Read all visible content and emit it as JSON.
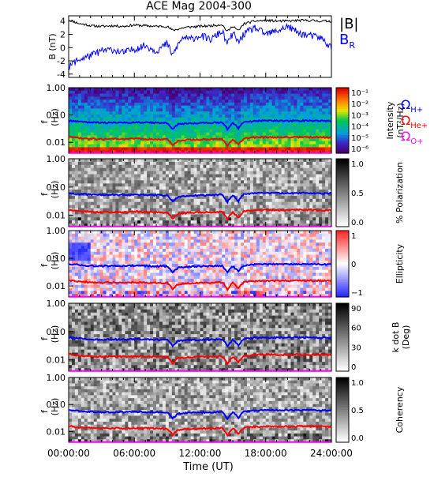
{
  "title": "ACE Mag 2004-300",
  "x_axis": {
    "label": "Time (UT)",
    "ticks": [
      "00:00:00",
      "06:00:00",
      "12:00:00",
      "18:00:00",
      "24:00:00"
    ],
    "range_hours": [
      0,
      24
    ]
  },
  "colors": {
    "B_mag": "#000000",
    "B_R": "#0000ff",
    "proton_gyro": "#0000ff",
    "helium_gyro": "#ff0000",
    "oxygen_gyro": "#ff00ff"
  },
  "chart_data": [
    {
      "type": "line",
      "ylabel": "B (nT)",
      "ylim": [
        -4.5,
        4.8
      ],
      "yticks": [
        "4",
        "2",
        "0",
        "-2",
        "-4"
      ],
      "legend": [
        "|B|",
        "B_R"
      ],
      "legend_placement": "right",
      "series": [
        {
          "name": "|B|",
          "x": [
            0,
            0.5,
            1,
            1.5,
            2,
            3,
            4,
            5,
            6,
            7,
            8,
            9,
            9.5,
            10,
            10.5,
            11,
            12,
            13,
            14,
            14.5,
            15,
            15.5,
            16,
            17,
            18,
            19,
            20,
            21,
            22,
            23,
            24
          ],
          "y": [
            4.2,
            3.9,
            3.6,
            3.5,
            3.3,
            3.2,
            3.3,
            3.2,
            3.4,
            3.3,
            3.2,
            3.2,
            2.6,
            2.8,
            3.0,
            3.1,
            3.2,
            3.3,
            3.5,
            2.4,
            3.3,
            2.5,
            3.6,
            4.0,
            4.1,
            4.0,
            4.0,
            4.1,
            4.1,
            4.0,
            4.0
          ]
        },
        {
          "name": "B_R",
          "x": [
            0,
            0.5,
            1,
            1.5,
            2,
            3,
            4,
            5,
            6,
            7,
            8,
            9,
            9.5,
            10,
            10.5,
            11,
            12,
            13,
            14,
            14.5,
            15,
            15.5,
            16,
            17,
            18,
            19,
            20,
            21,
            22,
            23,
            24
          ],
          "y": [
            -3.0,
            -2.2,
            -1.8,
            -1.5,
            -1.2,
            -0.5,
            -0.3,
            -0.8,
            -0.2,
            0.3,
            -0.5,
            0.6,
            -1.2,
            0.5,
            1.6,
            1.2,
            1.8,
            1.2,
            2.5,
            0.5,
            2.2,
            0.8,
            2.0,
            3.0,
            2.0,
            2.5,
            3.2,
            2.2,
            1.8,
            1.5,
            0.0
          ]
        }
      ]
    },
    {
      "type": "heatmap",
      "ylabel": "f (Hz)",
      "yscale": "log",
      "ylim": [
        0.004,
        1.0
      ],
      "yticks": [
        "1.00",
        "0.10",
        "0.01"
      ],
      "colorbar_label": "Intensity (nT²/Hz)",
      "colorbar_ticks": [
        "10⁻¹",
        "10⁻²",
        "10⁻³",
        "10⁻⁴",
        "10⁻⁵",
        "10⁻⁶"
      ],
      "colorbar_range": [
        1e-06,
        0.1
      ],
      "legend": [
        "Ω_H+",
        "Ω_He+",
        "Ω_O+"
      ]
    },
    {
      "type": "heatmap",
      "ylabel": "f (Hz)",
      "yscale": "log",
      "ylim": [
        0.004,
        1.0
      ],
      "yticks": [
        "1.00",
        "0.10",
        "0.01"
      ],
      "colorbar_label": "% Polarization",
      "colorbar_ticks": [
        "1.0",
        "0.5",
        "0.0"
      ],
      "colorbar_range": [
        0,
        1
      ]
    },
    {
      "type": "heatmap",
      "ylabel": "f (Hz)",
      "yscale": "log",
      "ylim": [
        0.004,
        1.0
      ],
      "yticks": [
        "1.00",
        "0.10",
        "0.01"
      ],
      "colorbar_label": "Ellipticity",
      "colorbar_ticks": [
        "1",
        "0",
        "−1"
      ],
      "colorbar_range": [
        -1,
        1
      ]
    },
    {
      "type": "heatmap",
      "ylabel": "f (Hz)",
      "yscale": "log",
      "ylim": [
        0.004,
        1.0
      ],
      "yticks": [
        "1.00",
        "0.10",
        "0.01"
      ],
      "colorbar_label": "k dot B (Deg)",
      "colorbar_ticks": [
        "90",
        "60",
        "30",
        "0"
      ],
      "colorbar_range": [
        0,
        90
      ]
    },
    {
      "type": "heatmap",
      "ylabel": "f (Hz)",
      "yscale": "log",
      "ylim": [
        0.004,
        1.0
      ],
      "yticks": [
        "1.00",
        "0.10",
        "0.01"
      ],
      "colorbar_label": "Coherency",
      "colorbar_ticks": [
        "1.0",
        "0.5",
        "0.0"
      ],
      "colorbar_range": [
        0,
        1
      ]
    }
  ],
  "gyrofrequencies_hz": {
    "x": [
      0,
      1,
      2,
      3,
      4,
      5,
      6,
      7,
      8,
      9,
      9.5,
      10,
      10.5,
      11,
      12,
      13,
      14,
      14.5,
      15,
      15.5,
      16,
      17,
      18,
      19,
      20,
      21,
      22,
      23,
      24
    ],
    "H+": [
      0.063,
      0.057,
      0.054,
      0.052,
      0.053,
      0.052,
      0.054,
      0.053,
      0.052,
      0.051,
      0.03,
      0.046,
      0.048,
      0.05,
      0.051,
      0.052,
      0.054,
      0.03,
      0.052,
      0.032,
      0.055,
      0.06,
      0.062,
      0.061,
      0.061,
      0.062,
      0.062,
      0.061,
      0.06
    ],
    "He+": [
      0.016,
      0.014,
      0.0135,
      0.013,
      0.0133,
      0.013,
      0.0135,
      0.0132,
      0.013,
      0.0128,
      0.0075,
      0.0115,
      0.012,
      0.0125,
      0.0128,
      0.013,
      0.0135,
      0.0075,
      0.013,
      0.008,
      0.0138,
      0.015,
      0.0155,
      0.0153,
      0.0153,
      0.0155,
      0.0155,
      0.0153,
      0.015
    ],
    "O+": [
      0.004,
      0.0036,
      0.0034,
      0.0033,
      0.0033,
      0.0032,
      0.0034,
      0.0033,
      0.0032,
      0.0032,
      0.003,
      0.0031,
      0.0031,
      0.0031,
      0.0032,
      0.0033,
      0.0034,
      0.003,
      0.0033,
      0.003,
      0.0034,
      0.0038,
      0.0039,
      0.0038,
      0.0038,
      0.0039,
      0.0039,
      0.0038,
      0.0038
    ]
  }
}
